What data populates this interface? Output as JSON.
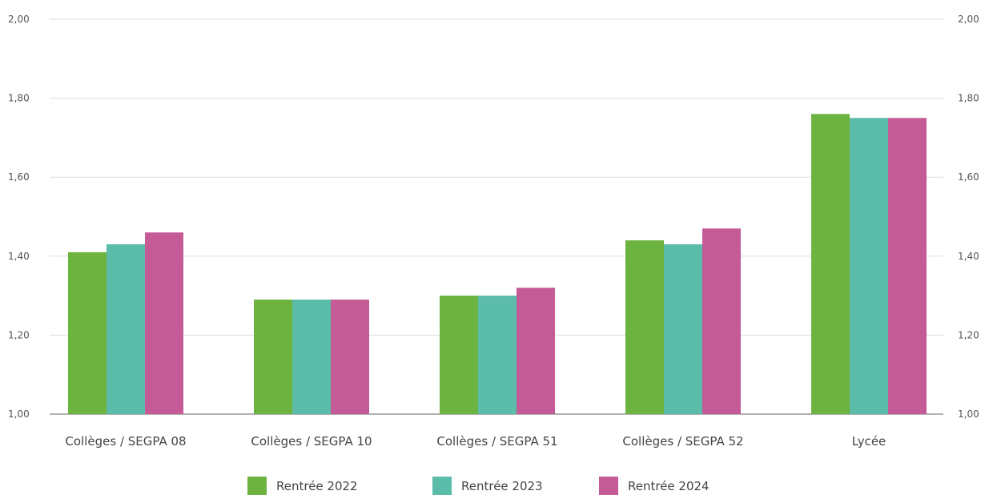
{
  "chart_data": {
    "type": "bar",
    "categories": [
      "Collèges / SEGPA 08",
      "Collèges / SEGPA 10",
      "Collèges / SEGPA 51",
      "Collèges / SEGPA 52",
      "Lycée"
    ],
    "series": [
      {
        "name": "Rentrée 2022",
        "color": "#6db33f",
        "values": [
          1.41,
          1.29,
          1.3,
          1.44,
          1.76
        ]
      },
      {
        "name": "Rentrée 2023",
        "color": "#5bbcaa",
        "values": [
          1.43,
          1.29,
          1.3,
          1.43,
          1.75
        ]
      },
      {
        "name": "Rentrée 2024",
        "color": "#c45a96",
        "values": [
          1.46,
          1.29,
          1.32,
          1.47,
          1.75
        ]
      }
    ],
    "ylim": [
      1.0,
      2.0
    ],
    "yticks": [
      "1,00",
      "1,20",
      "1,40",
      "1,60",
      "1,80",
      "2,00"
    ],
    "ytick_values": [
      1.0,
      1.2,
      1.4,
      1.6,
      1.8,
      2.0
    ],
    "y_axis_sides": [
      "left",
      "right"
    ],
    "grid": true,
    "legend_position": "bottom-center"
  }
}
